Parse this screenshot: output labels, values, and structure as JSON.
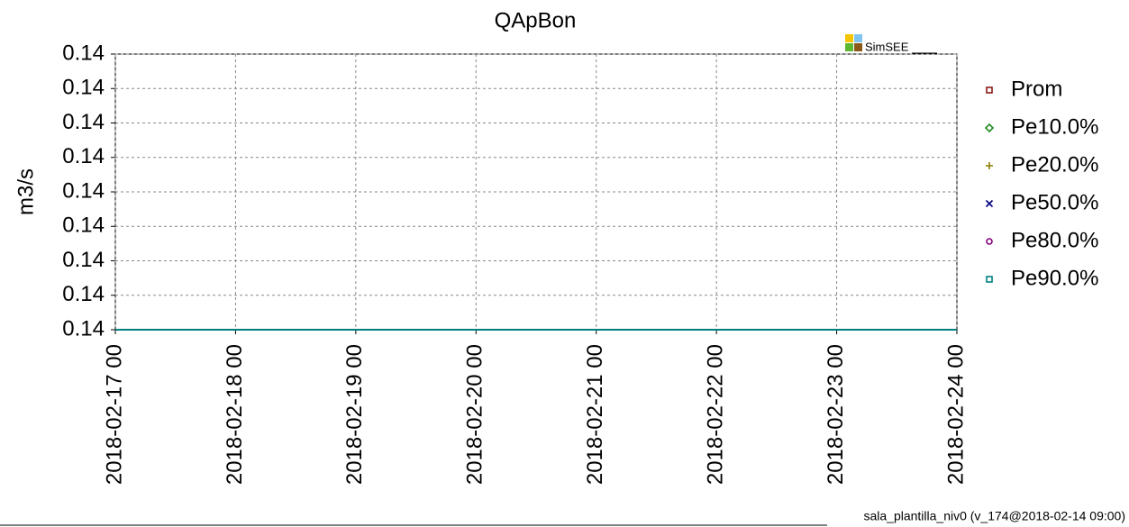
{
  "chart_data": {
    "type": "line",
    "title": "QApBon",
    "ylabel": "m3/s",
    "categories": [
      "2018-02-17 00",
      "2018-02-18 00",
      "2018-02-19 00",
      "2018-02-20 00",
      "2018-02-21 00",
      "2018-02-22 00",
      "2018-02-23 00",
      "2018-02-24 00"
    ],
    "series": [
      {
        "name": "Prom",
        "color": "#8b1a1a",
        "marker": "square",
        "values": [
          0.14,
          0.14,
          0.14,
          0.14,
          0.14,
          0.14,
          0.14,
          0.14
        ]
      },
      {
        "name": "Pe10.0%",
        "color": "#228b22",
        "marker": "diamond",
        "values": [
          0.14,
          0.14,
          0.14,
          0.14,
          0.14,
          0.14,
          0.14,
          0.14
        ]
      },
      {
        "name": "Pe20.0%",
        "color": "#8b7d00",
        "marker": "plus",
        "values": [
          0.14,
          0.14,
          0.14,
          0.14,
          0.14,
          0.14,
          0.14,
          0.14
        ]
      },
      {
        "name": "Pe50.0%",
        "color": "#000080",
        "marker": "cross",
        "values": [
          0.14,
          0.14,
          0.14,
          0.14,
          0.14,
          0.14,
          0.14,
          0.14
        ]
      },
      {
        "name": "Pe80.0%",
        "color": "#800080",
        "marker": "circle",
        "values": [
          0.14,
          0.14,
          0.14,
          0.14,
          0.14,
          0.14,
          0.14,
          0.14
        ]
      },
      {
        "name": "Pe90.0%",
        "color": "#008080",
        "marker": "square",
        "values": [
          0.14,
          0.14,
          0.14,
          0.14,
          0.14,
          0.14,
          0.14,
          0.14
        ]
      }
    ],
    "ylim": [
      0.14,
      0.1408
    ],
    "yticks": [
      0.14,
      {
        "value": 0.1401,
        "label": "0.14"
      },
      {
        "value": 0.1402,
        "label": "0.14"
      },
      {
        "value": 0.1403,
        "label": "0.14"
      },
      {
        "value": 0.1404,
        "label": "0.14"
      },
      {
        "value": 0.1405,
        "label": "0.14"
      },
      {
        "value": 0.1406,
        "label": "0.14"
      },
      {
        "value": 0.1407,
        "label": "0.14"
      },
      {
        "value": 0.1408,
        "label": "0.14"
      }
    ],
    "grid": true,
    "legend": "right",
    "logo": "SimSEE",
    "footer": "sala_plantilla_niv0 (v_174@2018-02-14 09:00)"
  }
}
